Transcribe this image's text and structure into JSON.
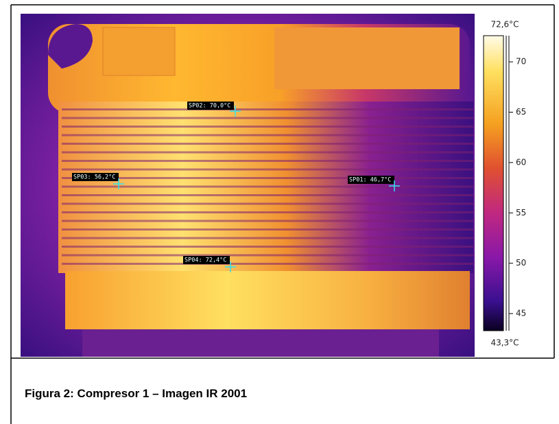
{
  "image": {
    "spots": [
      {
        "label": "SP02: 70,0°C"
      },
      {
        "label": "SP03: 56,2°C"
      },
      {
        "label": "SP01: 46,7°C"
      },
      {
        "label": "SP04: 72,4°C"
      }
    ],
    "scale": {
      "top": {
        "value": 72.6,
        "label": "72,6°C"
      },
      "bottom": {
        "value": 43.3,
        "label": "43,3°C"
      },
      "ticks": [
        70,
        65,
        60,
        55,
        50,
        45
      ]
    }
  },
  "caption": "Figura 2: Compresor 1 – Imagen IR 2001"
}
